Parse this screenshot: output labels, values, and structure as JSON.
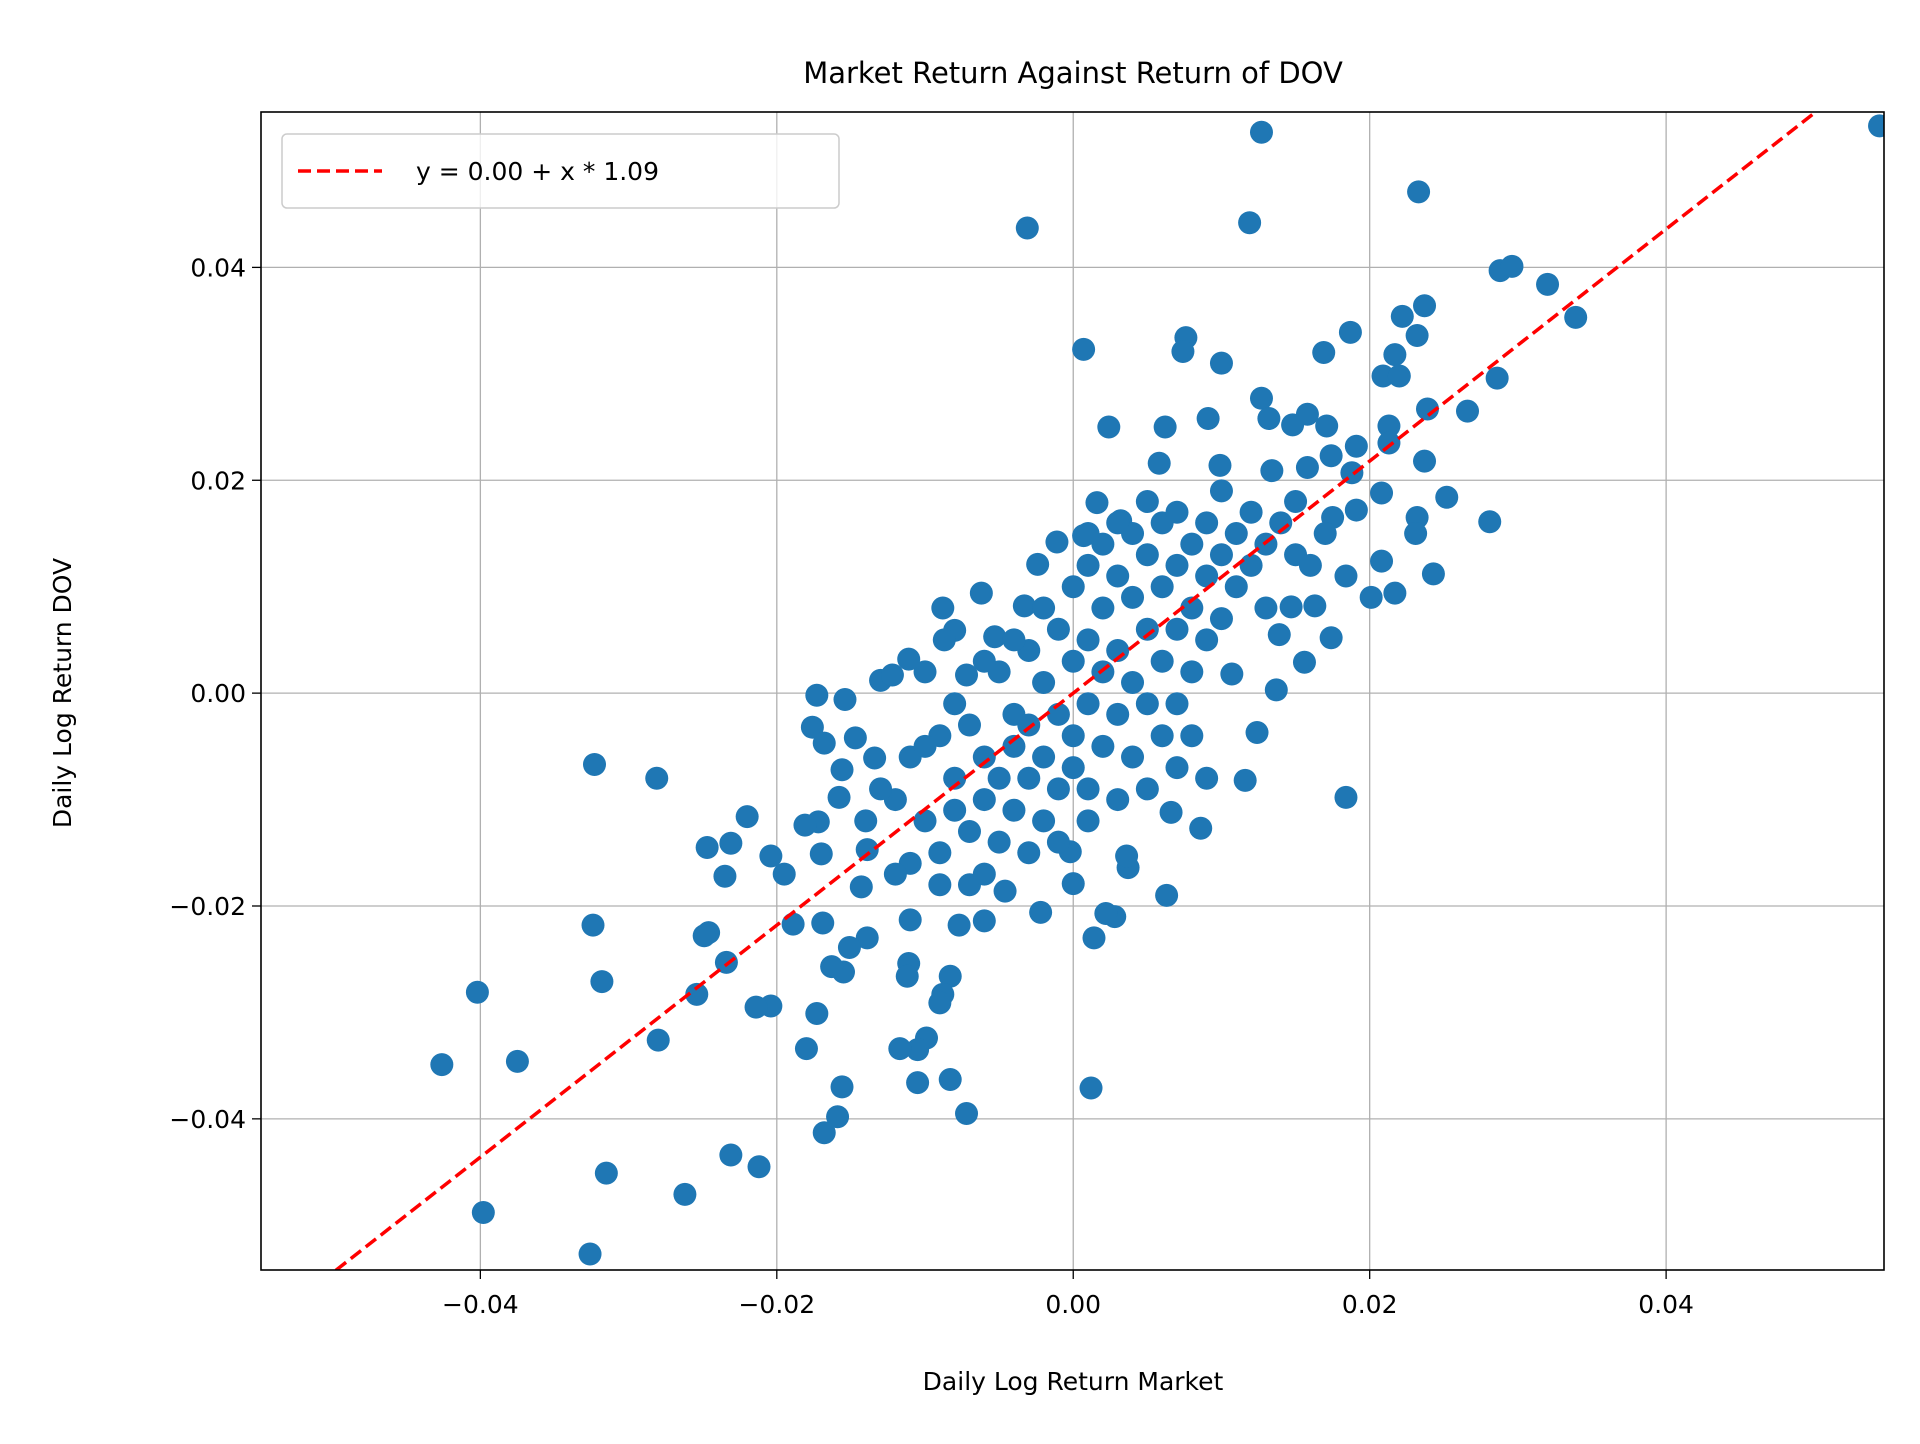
{
  "chart_data": {
    "type": "scatter",
    "title": "Market Return Against Return of DOV",
    "xlabel": "Daily Log Return Market",
    "ylabel": "Daily Log Return DOV",
    "xlim": [
      -0.0548,
      0.0547
    ],
    "ylim": [
      -0.0542,
      0.0546
    ],
    "xticks": [
      -0.04,
      -0.02,
      0.0,
      0.02,
      0.04
    ],
    "xtick_labels": [
      "−0.04",
      "−0.02",
      "0.00",
      "0.02",
      "0.04"
    ],
    "yticks": [
      -0.04,
      -0.02,
      0.0,
      0.02,
      0.04
    ],
    "ytick_labels": [
      "−0.04",
      "−0.02",
      "0.00",
      "0.02",
      "0.04"
    ],
    "grid": true,
    "legend_position": "top-left",
    "colors": {
      "points": "#1f77b4",
      "fit_line": "#ff0000"
    },
    "fit_line": {
      "name": "y = 0.00 + x * 1.09",
      "intercept": 0.0,
      "slope": 1.09,
      "style": "dashed"
    },
    "points": [
      [
        0.0544,
        0.0533
      ],
      [
        0.0127,
        0.0527
      ],
      [
        0.0233,
        0.0471
      ],
      [
        -0.0031,
        0.0437
      ],
      [
        0.0119,
        0.0442
      ],
      [
        0.0288,
        0.0397
      ],
      [
        0.0296,
        0.0401
      ],
      [
        0.032,
        0.0384
      ],
      [
        0.0339,
        0.0353
      ],
      [
        0.0237,
        0.0364
      ],
      [
        0.0222,
        0.0354
      ],
      [
        0.0232,
        0.0336
      ],
      [
        0.0187,
        0.0339
      ],
      [
        0.0076,
        0.0334
      ],
      [
        0.0074,
        0.0321
      ],
      [
        0.0007,
        0.0323
      ],
      [
        0.01,
        0.031
      ],
      [
        0.0169,
        0.032
      ],
      [
        0.0217,
        0.0318
      ],
      [
        0.0209,
        0.0298
      ],
      [
        0.022,
        0.0298
      ],
      [
        0.0286,
        0.0296
      ],
      [
        0.0127,
        0.0277
      ],
      [
        0.0239,
        0.0267
      ],
      [
        0.0266,
        0.0265
      ],
      [
        0.0158,
        0.0262
      ],
      [
        0.0132,
        0.0258
      ],
      [
        0.0091,
        0.0258
      ],
      [
        0.0024,
        0.025
      ],
      [
        0.0062,
        0.025
      ],
      [
        0.0213,
        0.0251
      ],
      [
        0.0171,
        0.0251
      ],
      [
        0.0148,
        0.0252
      ],
      [
        0.0191,
        0.0232
      ],
      [
        0.0213,
        0.0235
      ],
      [
        0.0237,
        0.0218
      ],
      [
        0.0058,
        0.0216
      ],
      [
        0.0099,
        0.0214
      ],
      [
        0.0134,
        0.0209
      ],
      [
        0.0158,
        0.0212
      ],
      [
        0.0174,
        0.0223
      ],
      [
        0.0188,
        0.0207
      ],
      [
        0.0252,
        0.0184
      ],
      [
        0.0281,
        0.0161
      ],
      [
        0.0208,
        0.0188
      ],
      [
        0.0191,
        0.0172
      ],
      [
        0.0175,
        0.0165
      ],
      [
        0.0232,
        0.0165
      ],
      [
        0.0231,
        0.015
      ],
      [
        0.0208,
        0.0124
      ],
      [
        0.0243,
        0.0112
      ],
      [
        0.0184,
        0.011
      ],
      [
        0.0217,
        0.0094
      ],
      [
        0.0201,
        0.009
      ],
      [
        0.0163,
        0.0082
      ],
      [
        0.0147,
        0.0081
      ],
      [
        0.0174,
        0.0052
      ],
      [
        0.0139,
        0.0055
      ],
      [
        0.0156,
        0.0029
      ],
      [
        0.0137,
        0.0003
      ],
      [
        0.0107,
        0.0018
      ],
      [
        0.0124,
        -0.0037
      ],
      [
        0.0116,
        -0.0082
      ],
      [
        0.0184,
        -0.0098
      ],
      [
        0.0086,
        -0.0127
      ],
      [
        0.0066,
        -0.0112
      ],
      [
        0.0063,
        -0.019
      ],
      [
        0.0037,
        -0.0164
      ],
      [
        0.0036,
        -0.0153
      ],
      [
        0.0028,
        -0.021
      ],
      [
        0.0022,
        -0.0207
      ],
      [
        0.0014,
        -0.023
      ],
      [
        0.0012,
        -0.0371
      ],
      [
        0.0,
        -0.0179
      ],
      [
        -0.0002,
        -0.0149
      ],
      [
        -0.0022,
        -0.0206
      ],
      [
        -0.0046,
        -0.0186
      ],
      [
        -0.006,
        -0.0214
      ],
      [
        -0.0077,
        -0.0218
      ],
      [
        -0.0083,
        -0.0266
      ],
      [
        -0.0088,
        -0.0283
      ],
      [
        -0.009,
        -0.0291
      ],
      [
        -0.0083,
        -0.0363
      ],
      [
        -0.0072,
        -0.0395
      ],
      [
        -0.0099,
        -0.0324
      ],
      [
        -0.0105,
        -0.0335
      ],
      [
        -0.0105,
        -0.0366
      ],
      [
        -0.0117,
        -0.0334
      ],
      [
        -0.0111,
        -0.0254
      ],
      [
        -0.0112,
        -0.0266
      ],
      [
        -0.011,
        -0.0213
      ],
      [
        -0.0156,
        -0.037
      ],
      [
        -0.0159,
        -0.0398
      ],
      [
        -0.0168,
        -0.0413
      ],
      [
        -0.0155,
        -0.0262
      ],
      [
        -0.0163,
        -0.0257
      ],
      [
        -0.0173,
        -0.0301
      ],
      [
        -0.018,
        -0.0334
      ],
      [
        -0.0169,
        -0.0216
      ],
      [
        -0.0189,
        -0.0217
      ],
      [
        -0.0204,
        -0.0294
      ],
      [
        -0.0214,
        -0.0295
      ],
      [
        -0.0212,
        -0.0445
      ],
      [
        -0.0231,
        -0.0434
      ],
      [
        -0.0262,
        -0.0471
      ],
      [
        -0.0315,
        -0.0451
      ],
      [
        -0.0326,
        -0.0527
      ],
      [
        -0.0398,
        -0.0488
      ],
      [
        -0.0426,
        -0.0349
      ],
      [
        -0.0375,
        -0.0346
      ],
      [
        -0.0402,
        -0.0281
      ],
      [
        -0.0318,
        -0.0271
      ],
      [
        -0.0324,
        -0.0218
      ],
      [
        -0.028,
        -0.0326
      ],
      [
        -0.0254,
        -0.0283
      ],
      [
        -0.0234,
        -0.0253
      ],
      [
        -0.0246,
        -0.0225
      ],
      [
        -0.0249,
        -0.0228
      ],
      [
        -0.0235,
        -0.0172
      ],
      [
        -0.0247,
        -0.0145
      ],
      [
        -0.0231,
        -0.0141
      ],
      [
        -0.022,
        -0.0116
      ],
      [
        -0.0204,
        -0.0153
      ],
      [
        -0.0195,
        -0.017
      ],
      [
        -0.0323,
        -0.0067
      ],
      [
        -0.0281,
        -0.008
      ],
      [
        -0.0173,
        -0.0002
      ],
      [
        -0.0154,
        -0.0006
      ],
      [
        -0.0176,
        -0.0032
      ],
      [
        -0.0147,
        -0.0042
      ],
      [
        -0.0168,
        -0.0047
      ],
      [
        -0.0134,
        -0.0061
      ],
      [
        -0.0156,
        -0.0072
      ],
      [
        -0.0158,
        -0.0098
      ],
      [
        -0.0172,
        -0.0121
      ],
      [
        -0.0181,
        -0.0124
      ],
      [
        -0.017,
        -0.0151
      ],
      [
        -0.0139,
        -0.0147
      ],
      [
        -0.0143,
        -0.0182
      ],
      [
        -0.0139,
        -0.023
      ],
      [
        -0.0151,
        -0.0239
      ],
      [
        -0.013,
        0.0012
      ],
      [
        -0.0122,
        0.0017
      ],
      [
        -0.0111,
        0.0032
      ],
      [
        -0.0088,
        0.008
      ],
      [
        -0.0062,
        0.0094
      ],
      [
        -0.008,
        0.0059
      ],
      [
        -0.0087,
        0.005
      ],
      [
        -0.0072,
        0.0017
      ],
      [
        -0.0033,
        0.0082
      ],
      [
        -0.0053,
        0.0053
      ],
      [
        -0.0024,
        0.0121
      ],
      [
        -0.0011,
        0.0142
      ],
      [
        0.0016,
        0.0179
      ],
      [
        0.0032,
        0.0162
      ],
      [
        0.0007,
        0.0148
      ],
      [
        -0.012,
        -0.01
      ],
      [
        -0.011,
        -0.006
      ],
      [
        -0.01,
        -0.012
      ],
      [
        -0.009,
        -0.004
      ],
      [
        -0.009,
        -0.015
      ],
      [
        -0.008,
        -0.008
      ],
      [
        -0.008,
        -0.011
      ],
      [
        -0.007,
        -0.003
      ],
      [
        -0.007,
        -0.013
      ],
      [
        -0.006,
        -0.006
      ],
      [
        -0.006,
        -0.01
      ],
      [
        -0.005,
        0.002
      ],
      [
        -0.005,
        -0.008
      ],
      [
        -0.005,
        -0.014
      ],
      [
        -0.004,
        -0.002
      ],
      [
        -0.004,
        -0.005
      ],
      [
        -0.004,
        -0.011
      ],
      [
        -0.003,
        0.004
      ],
      [
        -0.003,
        -0.003
      ],
      [
        -0.003,
        -0.008
      ],
      [
        -0.002,
        0.001
      ],
      [
        -0.002,
        -0.006
      ],
      [
        -0.002,
        -0.012
      ],
      [
        -0.001,
        0.006
      ],
      [
        -0.001,
        -0.002
      ],
      [
        -0.001,
        -0.009
      ],
      [
        0.0,
        0.01
      ],
      [
        0.0,
        0.003
      ],
      [
        0.0,
        -0.004
      ],
      [
        0.0,
        -0.007
      ],
      [
        0.001,
        0.012
      ],
      [
        0.001,
        0.005
      ],
      [
        0.001,
        -0.001
      ],
      [
        0.001,
        -0.009
      ],
      [
        0.002,
        0.014
      ],
      [
        0.002,
        0.008
      ],
      [
        0.002,
        0.002
      ],
      [
        0.002,
        -0.005
      ],
      [
        0.003,
        0.011
      ],
      [
        0.003,
        0.004
      ],
      [
        0.003,
        -0.002
      ],
      [
        0.004,
        0.015
      ],
      [
        0.004,
        0.009
      ],
      [
        0.004,
        0.001
      ],
      [
        0.004,
        -0.006
      ],
      [
        0.005,
        0.013
      ],
      [
        0.005,
        0.006
      ],
      [
        0.005,
        -0.001
      ],
      [
        0.006,
        0.016
      ],
      [
        0.006,
        0.01
      ],
      [
        0.006,
        0.003
      ],
      [
        0.006,
        -0.004
      ],
      [
        0.007,
        0.017
      ],
      [
        0.007,
        0.012
      ],
      [
        0.007,
        0.006
      ],
      [
        0.007,
        -0.001
      ],
      [
        0.008,
        0.014
      ],
      [
        0.008,
        0.008
      ],
      [
        0.008,
        0.002
      ],
      [
        0.009,
        0.016
      ],
      [
        0.009,
        0.011
      ],
      [
        0.009,
        0.005
      ],
      [
        0.01,
        0.019
      ],
      [
        0.01,
        0.013
      ],
      [
        0.01,
        0.007
      ],
      [
        0.011,
        0.015
      ],
      [
        0.011,
        0.01
      ],
      [
        0.012,
        0.017
      ],
      [
        0.012,
        0.012
      ],
      [
        0.013,
        0.014
      ],
      [
        0.013,
        0.008
      ],
      [
        0.014,
        0.016
      ],
      [
        0.015,
        0.013
      ],
      [
        0.015,
        0.018
      ],
      [
        0.016,
        0.012
      ],
      [
        0.017,
        0.015
      ],
      [
        -0.01,
        -0.005
      ],
      [
        -0.011,
        -0.016
      ],
      [
        -0.013,
        -0.009
      ],
      [
        -0.012,
        -0.017
      ],
      [
        -0.014,
        -0.012
      ],
      [
        -0.009,
        -0.018
      ],
      [
        -0.007,
        -0.018
      ],
      [
        -0.006,
        -0.017
      ],
      [
        -0.003,
        -0.015
      ],
      [
        -0.004,
        0.005
      ],
      [
        -0.002,
        0.008
      ],
      [
        0.001,
        0.015
      ],
      [
        0.003,
        0.016
      ],
      [
        0.005,
        0.018
      ],
      [
        0.008,
        -0.004
      ],
      [
        0.009,
        -0.008
      ],
      [
        0.007,
        -0.007
      ],
      [
        0.005,
        -0.009
      ],
      [
        0.003,
        -0.01
      ],
      [
        0.001,
        -0.012
      ],
      [
        -0.001,
        -0.014
      ],
      [
        -0.008,
        -0.001
      ],
      [
        -0.01,
        0.002
      ],
      [
        -0.006,
        0.003
      ]
    ]
  }
}
